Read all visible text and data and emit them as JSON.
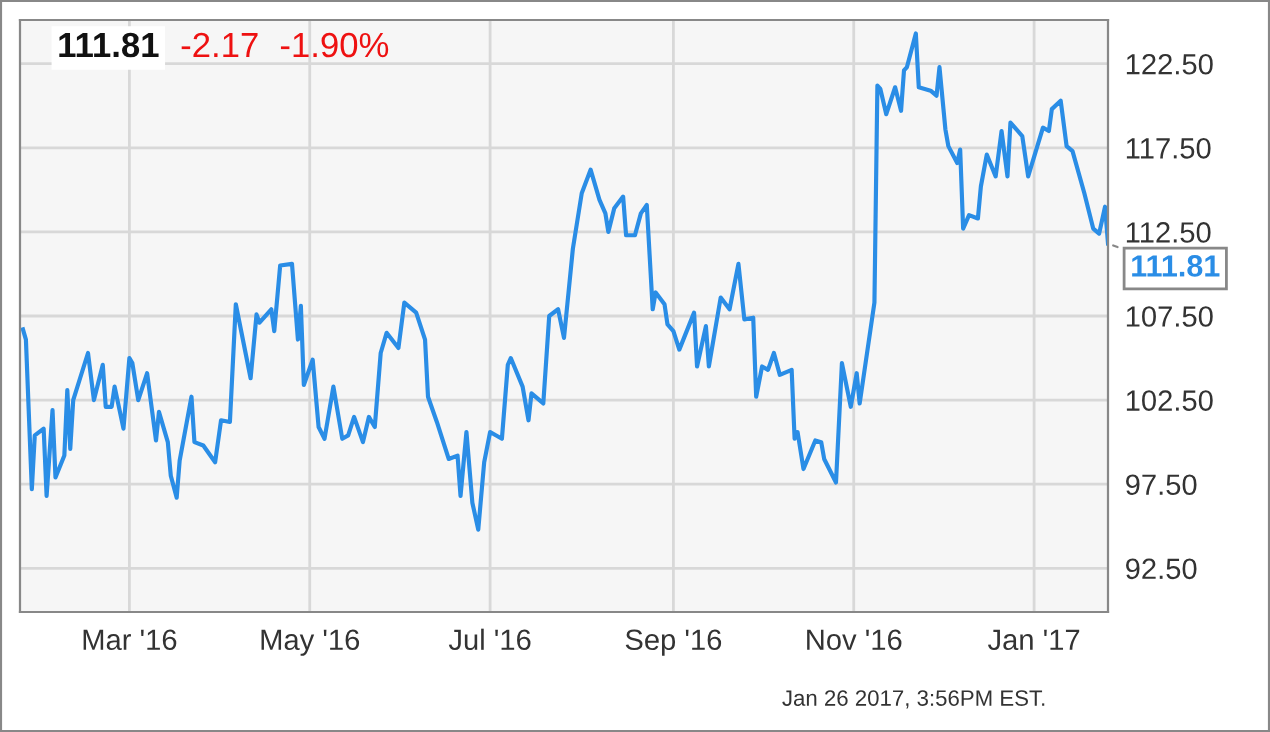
{
  "chart_data": {
    "type": "line",
    "x": [
      "2016-01-25",
      "2016-01-26",
      "2016-01-28",
      "2016-01-29",
      "2016-02-01",
      "2016-02-02",
      "2016-02-04",
      "2016-02-05",
      "2016-02-08",
      "2016-02-09",
      "2016-02-10",
      "2016-02-11",
      "2016-02-16",
      "2016-02-18",
      "2016-02-21",
      "2016-02-22",
      "2016-02-24",
      "2016-02-25",
      "2016-02-28",
      "2016-03-01",
      "2016-03-02",
      "2016-03-04",
      "2016-03-07",
      "2016-03-10",
      "2016-03-11",
      "2016-03-14",
      "2016-03-15",
      "2016-03-17",
      "2016-03-18",
      "2016-03-22",
      "2016-03-23",
      "2016-03-26",
      "2016-03-30",
      "2016-04-01",
      "2016-04-04",
      "2016-04-06",
      "2016-04-11",
      "2016-04-13",
      "2016-04-14",
      "2016-04-18",
      "2016-04-19",
      "2016-04-21",
      "2016-04-25",
      "2016-04-27",
      "2016-04-28",
      "2016-04-29",
      "2016-05-02",
      "2016-05-04",
      "2016-05-06",
      "2016-05-09",
      "2016-05-12",
      "2016-05-14",
      "2016-05-16",
      "2016-05-19",
      "2016-05-21",
      "2016-05-23",
      "2016-05-25",
      "2016-05-27",
      "2016-05-31",
      "2016-06-02",
      "2016-06-06",
      "2016-06-09",
      "2016-06-10",
      "2016-06-13",
      "2016-06-17",
      "2016-06-20",
      "2016-06-21",
      "2016-06-23",
      "2016-06-25",
      "2016-06-27",
      "2016-06-29",
      "2016-07-01",
      "2016-07-05",
      "2016-07-07",
      "2016-07-08",
      "2016-07-12",
      "2016-07-14",
      "2016-07-15",
      "2016-07-19",
      "2016-07-21",
      "2016-07-24",
      "2016-07-26",
      "2016-07-29",
      "2016-08-01",
      "2016-08-04",
      "2016-08-07",
      "2016-08-09",
      "2016-08-10",
      "2016-08-12",
      "2016-08-15",
      "2016-08-16",
      "2016-08-19",
      "2016-08-21",
      "2016-08-23",
      "2016-08-25",
      "2016-08-26",
      "2016-08-29",
      "2016-08-30",
      "2016-09-01",
      "2016-09-03",
      "2016-09-08",
      "2016-09-09",
      "2016-09-12",
      "2016-09-13",
      "2016-09-17",
      "2016-09-20",
      "2016-09-23",
      "2016-09-25",
      "2016-09-28",
      "2016-09-29",
      "2016-10-01",
      "2016-10-03",
      "2016-10-05",
      "2016-10-07",
      "2016-10-11",
      "2016-10-12",
      "2016-10-13",
      "2016-10-15",
      "2016-10-19",
      "2016-10-21",
      "2016-10-22",
      "2016-10-26",
      "2016-10-28",
      "2016-10-31",
      "2016-11-02",
      "2016-11-03",
      "2016-11-08",
      "2016-11-09",
      "2016-11-10",
      "2016-11-12",
      "2016-11-15",
      "2016-11-17",
      "2016-11-18",
      "2016-11-19",
      "2016-11-22",
      "2016-11-23",
      "2016-11-27",
      "2016-11-29",
      "2016-11-30",
      "2016-12-02",
      "2016-12-03",
      "2016-12-06",
      "2016-12-07",
      "2016-12-08",
      "2016-12-10",
      "2016-12-13",
      "2016-12-14",
      "2016-12-16",
      "2016-12-19",
      "2016-12-21",
      "2016-12-23",
      "2016-12-24",
      "2016-12-28",
      "2016-12-30",
      "2017-01-04",
      "2017-01-06",
      "2017-01-07",
      "2017-01-10",
      "2017-01-12",
      "2017-01-14",
      "2017-01-18",
      "2017-01-21",
      "2017-01-23",
      "2017-01-25",
      "2017-01-26"
    ],
    "series": [
      {
        "color": "#2a8de6",
        "values": [
          106.7,
          106.1,
          97.2,
          100.4,
          100.8,
          96.8,
          101.9,
          97.9,
          99.2,
          103.1,
          99.6,
          102.5,
          105.3,
          102.5,
          104.6,
          102.1,
          102.1,
          103.3,
          100.8,
          105.0,
          104.7,
          102.5,
          104.1,
          100.1,
          101.8,
          100.0,
          98.0,
          96.7,
          98.9,
          102.7,
          100.0,
          99.8,
          98.8,
          101.3,
          101.2,
          108.2,
          103.8,
          107.6,
          107.1,
          107.9,
          106.6,
          110.5,
          110.6,
          106.1,
          108.1,
          103.4,
          104.9,
          100.9,
          100.2,
          103.3,
          100.2,
          100.4,
          101.5,
          100.0,
          101.5,
          100.9,
          105.3,
          106.5,
          105.6,
          108.3,
          107.7,
          106.1,
          102.7,
          101.2,
          99.0,
          99.2,
          96.8,
          100.6,
          96.4,
          94.8,
          98.8,
          100.6,
          100.2,
          104.6,
          105.0,
          103.3,
          101.3,
          102.9,
          102.3,
          107.5,
          107.9,
          106.2,
          111.5,
          114.8,
          116.2,
          114.4,
          113.6,
          112.5,
          113.9,
          114.6,
          112.3,
          112.3,
          113.6,
          114.1,
          107.9,
          108.9,
          108.2,
          107.0,
          106.6,
          105.5,
          107.7,
          104.5,
          106.9,
          104.5,
          108.6,
          107.9,
          110.6,
          107.3,
          107.4,
          102.7,
          104.5,
          104.3,
          105.3,
          104.0,
          104.3,
          100.2,
          100.6,
          98.4,
          100.1,
          100.0,
          99.0,
          97.6,
          104.7,
          102.1,
          104.1,
          102.3,
          108.3,
          121.2,
          121.0,
          119.5,
          121.1,
          119.7,
          122.1,
          122.3,
          124.3,
          121.1,
          120.9,
          120.6,
          122.3,
          118.6,
          117.6,
          116.6,
          117.4,
          112.7,
          113.5,
          113.3,
          115.2,
          117.1,
          115.8,
          118.5,
          115.8,
          119.0,
          118.2,
          115.8,
          118.7,
          118.5,
          119.8,
          120.3,
          117.6,
          117.3,
          114.8,
          112.7,
          112.4,
          114.0,
          111.81
        ]
      }
    ],
    "xlim": [
      "2016-01-24",
      "2017-01-26"
    ],
    "xticks": [
      {
        "value": "2016-03-01",
        "label": "Mar '16"
      },
      {
        "value": "2016-05-01",
        "label": "May '16"
      },
      {
        "value": "2016-07-01",
        "label": "Jul '16"
      },
      {
        "value": "2016-09-01",
        "label": "Sep '16"
      },
      {
        "value": "2016-11-01",
        "label": "Nov '16"
      },
      {
        "value": "2017-01-01",
        "label": "Jan '17"
      }
    ],
    "ylim": [
      89.9,
      125.1
    ],
    "yticks": [
      {
        "value": 92.5,
        "label": "92.50"
      },
      {
        "value": 97.5,
        "label": "97.50"
      },
      {
        "value": 102.5,
        "label": "102.50"
      },
      {
        "value": 107.5,
        "label": "107.50"
      },
      {
        "value": 112.5,
        "label": "112.50"
      },
      {
        "value": 117.5,
        "label": "117.50"
      },
      {
        "value": 122.5,
        "label": "122.50"
      }
    ],
    "grid": true,
    "marker": "none",
    "line_style": "solid",
    "annotations": [
      "111.81",
      "-2.17",
      "-1.90%",
      {
        "text": "111.81",
        "x": "2017-01-26",
        "y": 111.81
      },
      "Jan 26 2017, 3:56PM EST."
    ]
  }
}
